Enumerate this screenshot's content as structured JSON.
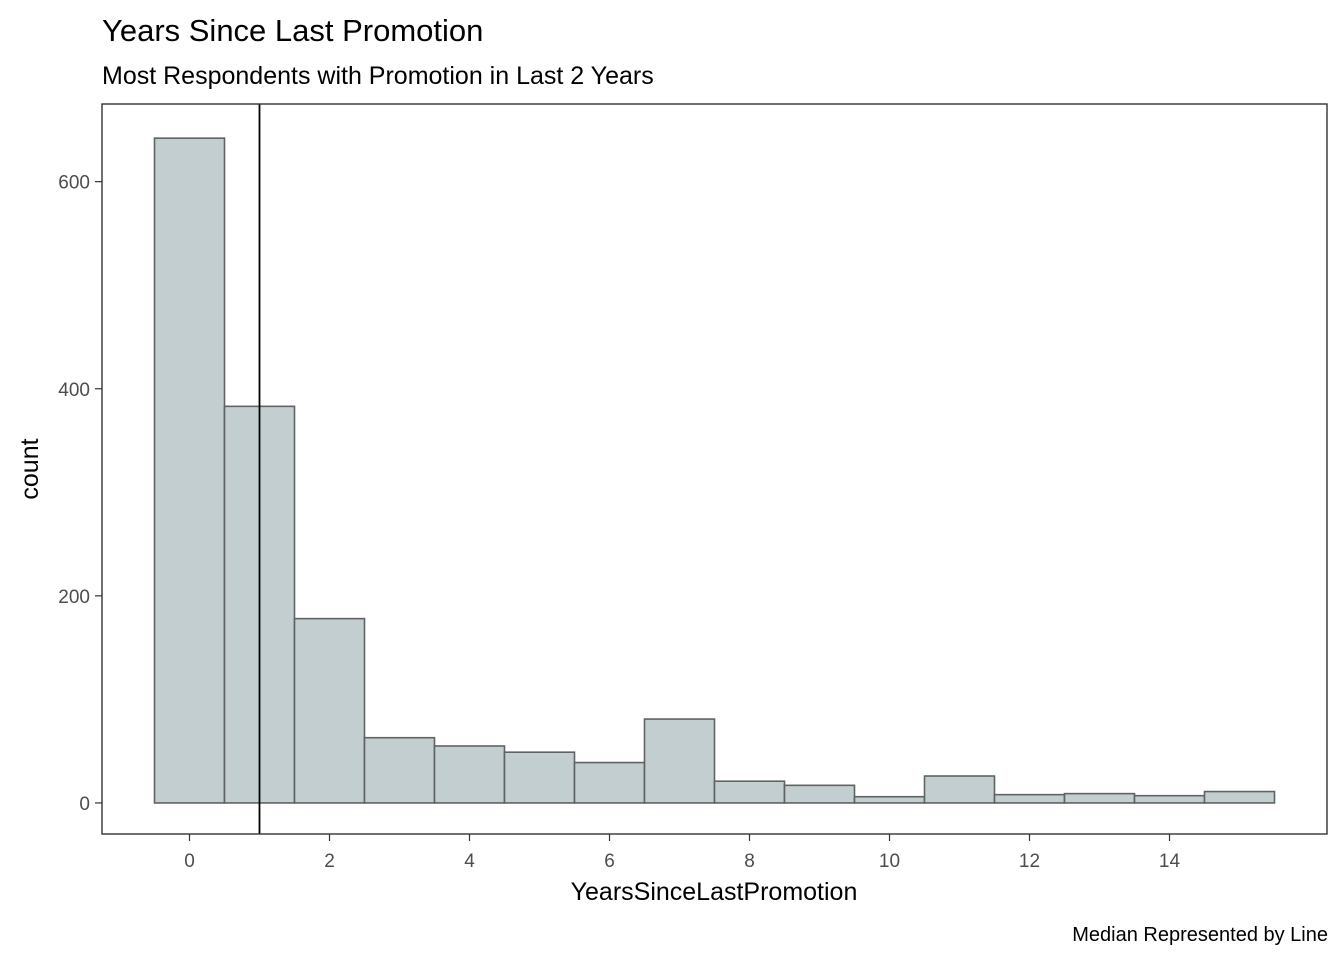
{
  "chart_data": {
    "type": "bar",
    "title": "Years Since Last Promotion",
    "subtitle": "Most Respondents with Promotion in Last 2 Years",
    "xlabel": "YearsSinceLastPromotion",
    "ylabel": "count",
    "caption": "Median Represented by Line",
    "x": [
      0,
      1,
      2,
      3,
      4,
      5,
      6,
      7,
      8,
      9,
      10,
      11,
      12,
      13,
      14,
      15
    ],
    "values": [
      642,
      383,
      178,
      63,
      55,
      49,
      39,
      81,
      21,
      17,
      6,
      26,
      8,
      9,
      7,
      11
    ],
    "bin_width": 1,
    "median": 1,
    "xlim": [
      -1.25,
      16.25
    ],
    "ylim": [
      -30,
      675
    ],
    "x_ticks": [
      0,
      2,
      4,
      6,
      8,
      10,
      12,
      14
    ],
    "y_ticks": [
      0,
      200,
      400,
      600
    ],
    "bar_fill": "#c2cecf",
    "bar_outline": "#5f6363",
    "median_line_color": "#000000",
    "grid": false,
    "legend": "none"
  }
}
